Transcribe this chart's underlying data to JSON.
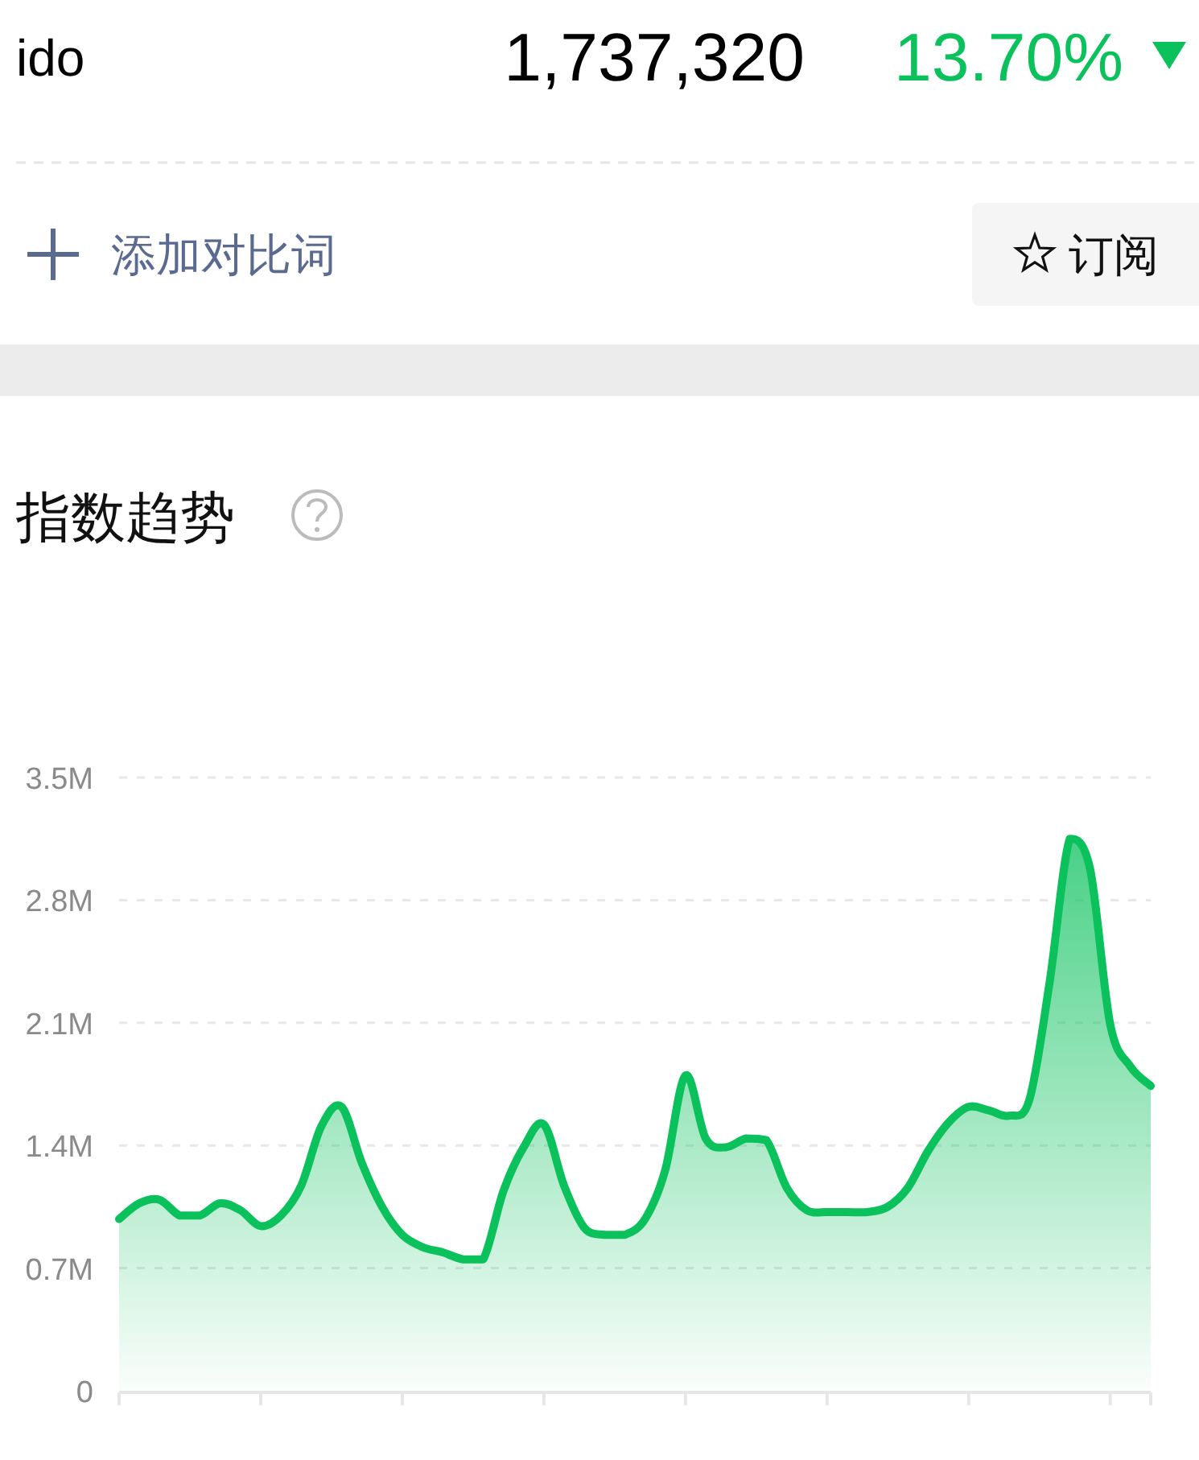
{
  "chart_data": {
    "type": "area",
    "title": "指数趋势",
    "annotations": [
      "ido",
      "1,737,320",
      "13.70%",
      "添加对比词",
      "订阅"
    ],
    "categories": [
      null,
      null,
      null,
      null,
      null,
      null,
      null,
      null,
      null,
      null,
      null,
      null,
      null,
      null,
      null,
      null,
      null,
      null,
      null,
      null,
      null,
      null,
      null,
      null,
      null,
      null,
      null,
      null,
      null,
      null,
      null,
      null,
      null,
      null,
      null,
      null,
      null,
      null,
      null,
      null,
      null,
      null,
      null,
      null,
      null,
      null,
      null,
      null,
      null,
      null,
      null,
      null
    ],
    "values": [
      0.98,
      1.07,
      1.09,
      1.0,
      1.0,
      1.07,
      1.03,
      0.94,
      1.0,
      1.17,
      1.51,
      1.62,
      1.3,
      1.05,
      0.89,
      0.82,
      0.79,
      0.75,
      0.75,
      1.14,
      1.39,
      1.52,
      1.17,
      0.93,
      0.89,
      0.89,
      0.98,
      1.26,
      1.8,
      1.44,
      1.39,
      1.44,
      1.43,
      1.16,
      1.03,
      1.02,
      1.02,
      1.02,
      1.05,
      1.16,
      1.37,
      1.53,
      1.62,
      1.6,
      1.57,
      1.66,
      2.33,
      3.15,
      2.98,
      2.09,
      1.85,
      1.74
    ],
    "color": "#0bc15c",
    "ylim": [
      0,
      3.5
    ],
    "yticks": [
      0,
      {
        "value": 0.7,
        "label": "0.7M"
      },
      {
        "value": 1.4,
        "label": "1.4M"
      },
      {
        "value": 2.1,
        "label": "2.1M"
      },
      {
        "value": 2.8,
        "label": "2.8M"
      },
      {
        "value": 3.5,
        "label": "3.5M"
      }
    ],
    "grid": "y",
    "legend": false,
    "marker": "none",
    "line_style": "solid"
  }
}
